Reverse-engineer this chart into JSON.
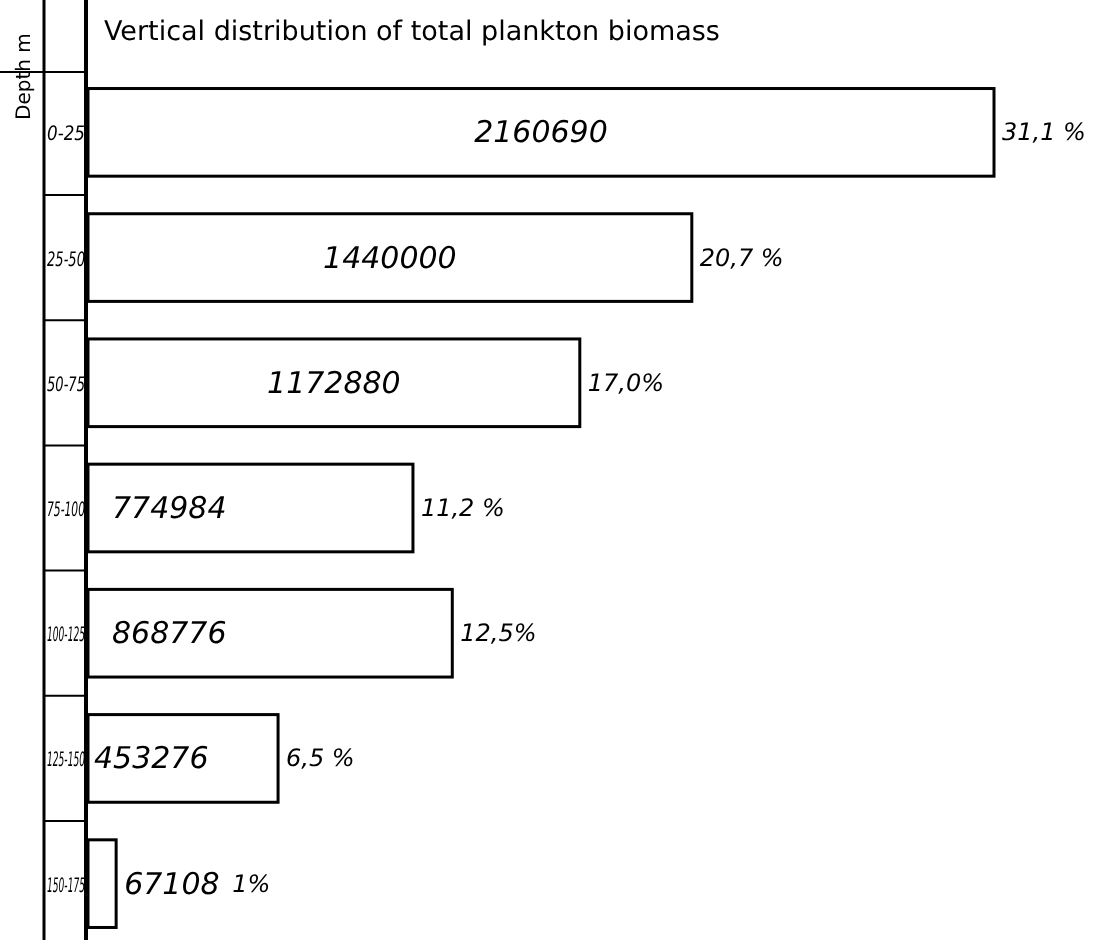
{
  "chart_data": {
    "type": "bar",
    "orientation": "horizontal",
    "relative": false,
    "title": "Vertical distribution of total plankton biomass",
    "ylabel": "Depth m",
    "categories": [
      "0-25",
      "25-50",
      "50-75",
      "75-100",
      "100-125",
      "125-150",
      "150-175"
    ],
    "values": [
      2160690,
      1440000,
      1172880,
      774984,
      868776,
      453276,
      67108
    ],
    "color": "#ffffff",
    "data_labels": true,
    "annotations": [
      "31,1 %",
      "20,7 %",
      "17,0%",
      "11,2 %",
      "12,5%",
      "6,5 %",
      "1%"
    ]
  }
}
